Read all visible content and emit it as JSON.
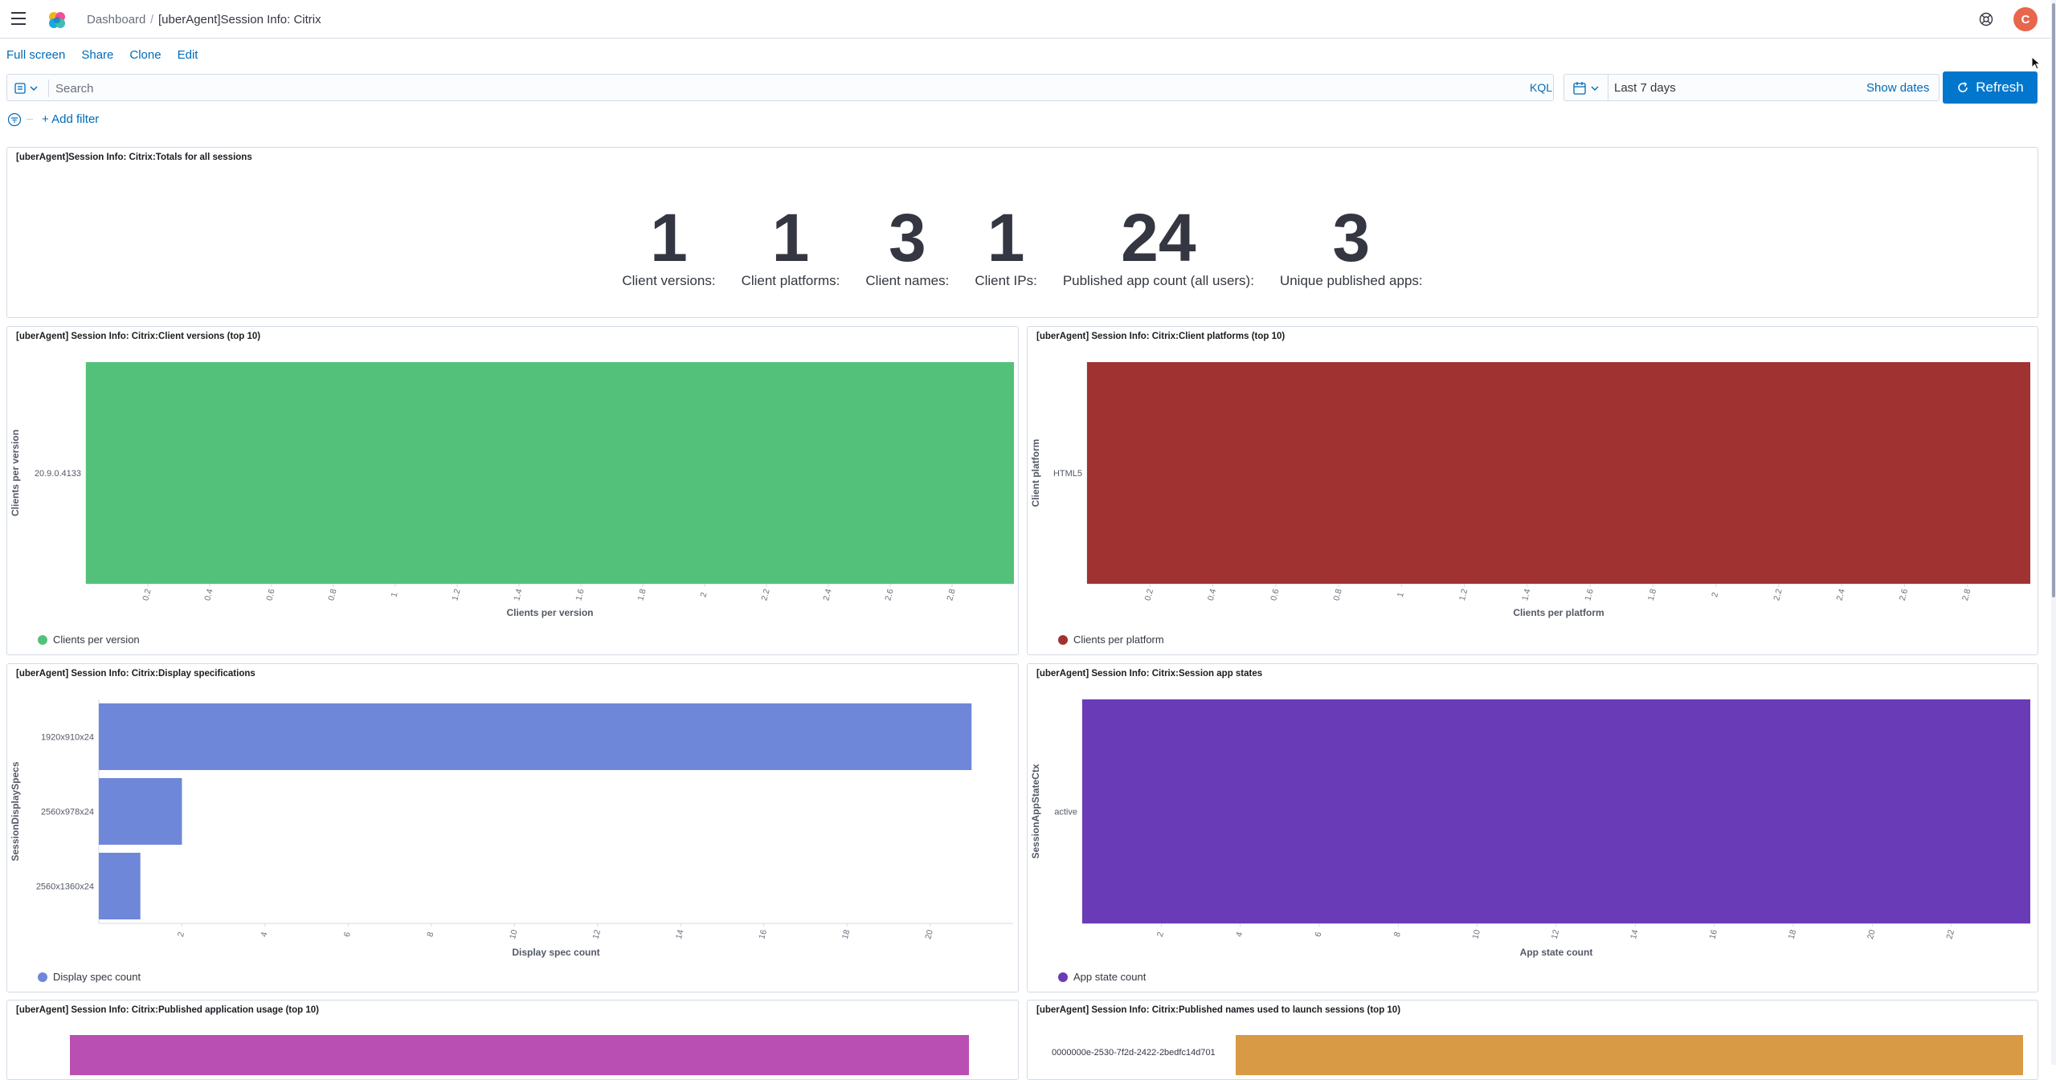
{
  "header": {
    "breadcrumb_home": "Dashboard",
    "breadcrumb_separator": "/",
    "breadcrumb_current": "[uberAgent]Session Info: Citrix",
    "avatar_initial": "C",
    "avatar_color": "#e7664c"
  },
  "actions": {
    "full_screen": "Full screen",
    "share": "Share",
    "clone": "Clone",
    "edit": "Edit"
  },
  "query": {
    "placeholder": "Search",
    "language": "KQL",
    "date_range": "Last 7 days",
    "show_dates": "Show dates",
    "refresh": "Refresh"
  },
  "filters": {
    "add_filter": "+ Add filter"
  },
  "panels": {
    "totals": {
      "title": "[uberAgent]Session Info: Citrix:Totals for all sessions",
      "metrics": [
        {
          "value": "1",
          "label": "Client versions:"
        },
        {
          "value": "1",
          "label": "Client platforms:"
        },
        {
          "value": "3",
          "label": "Client names:"
        },
        {
          "value": "1",
          "label": "Client IPs:"
        },
        {
          "value": "24",
          "label": "Published app count (all users):"
        },
        {
          "value": "3",
          "label": "Unique published apps:"
        }
      ]
    },
    "client_versions": {
      "title": "[uberAgent] Session Info: Citrix:Client versions (top 10)",
      "legend": "Clients per version",
      "color": "#54c17a"
    },
    "client_platforms": {
      "title": "[uberAgent] Session Info: Citrix:Client platforms (top 10)",
      "legend": "Clients per platform",
      "color": "#a03232"
    },
    "display_specs": {
      "title": "[uberAgent] Session Info: Citrix:Display specifications",
      "legend": "Display spec count",
      "color": "#6f87d8"
    },
    "app_states": {
      "title": "[uberAgent] Session Info: Citrix:Session app states",
      "legend": "App state count",
      "color": "#6a3bb7"
    },
    "published_apps": {
      "title": "[uberAgent] Session Info: Citrix:Published application usage (top 10)",
      "color": "#b94fb3"
    },
    "published_names": {
      "title": "[uberAgent] Session Info: Citrix:Published names used to launch sessions (top 10)",
      "color": "#d99a45"
    }
  },
  "chart_data": [
    {
      "type": "bar",
      "orientation": "horizontal",
      "categories": [
        "20.9.0.4133"
      ],
      "series": [
        {
          "name": "Clients per version",
          "values": [
            3
          ]
        }
      ],
      "xlabel": "Clients per version",
      "ylabel": "Clients per version",
      "xlim": [
        0,
        3
      ],
      "ticks": [
        "0.2",
        "0.4",
        "0.6",
        "0.8",
        "1",
        "1.2",
        "1.4",
        "1.6",
        "1.8",
        "2",
        "2.2",
        "2.4",
        "2.6",
        "2.8"
      ],
      "legend": "bottom-left"
    },
    {
      "type": "bar",
      "orientation": "horizontal",
      "categories": [
        "HTML5"
      ],
      "series": [
        {
          "name": "Clients per platform",
          "values": [
            3
          ]
        }
      ],
      "xlabel": "Clients per platform",
      "ylabel": "Client platform",
      "xlim": [
        0,
        3
      ],
      "ticks": [
        "0.2",
        "0.4",
        "0.6",
        "0.8",
        "1",
        "1.2",
        "1.4",
        "1.6",
        "1.8",
        "2",
        "2.2",
        "2.4",
        "2.6",
        "2.8"
      ],
      "legend": "bottom-left"
    },
    {
      "type": "bar",
      "orientation": "horizontal",
      "categories": [
        "1920x910x24",
        "2560x978x24",
        "2560x1360x24"
      ],
      "series": [
        {
          "name": "Display spec count",
          "values": [
            21,
            2,
            1
          ]
        }
      ],
      "xlabel": "Display spec count",
      "ylabel": "SessionDisplaySpecs",
      "xlim": [
        0,
        22
      ],
      "ticks": [
        "2",
        "4",
        "6",
        "8",
        "10",
        "12",
        "14",
        "16",
        "18",
        "20"
      ],
      "legend": "bottom-left"
    },
    {
      "type": "bar",
      "orientation": "horizontal",
      "categories": [
        "active"
      ],
      "series": [
        {
          "name": "App state count",
          "values": [
            24
          ]
        }
      ],
      "xlabel": "App state count",
      "ylabel": "SessionAppStateCtx",
      "xlim": [
        0,
        24
      ],
      "ticks": [
        "2",
        "4",
        "6",
        "8",
        "10",
        "12",
        "14",
        "16",
        "18",
        "20",
        "22"
      ],
      "legend": "bottom-left"
    },
    {
      "type": "bar",
      "orientation": "horizontal",
      "categories": [
        "0000000e-2530-7f2d-2422-2bedfc14d701"
      ],
      "legend": "none"
    }
  ]
}
